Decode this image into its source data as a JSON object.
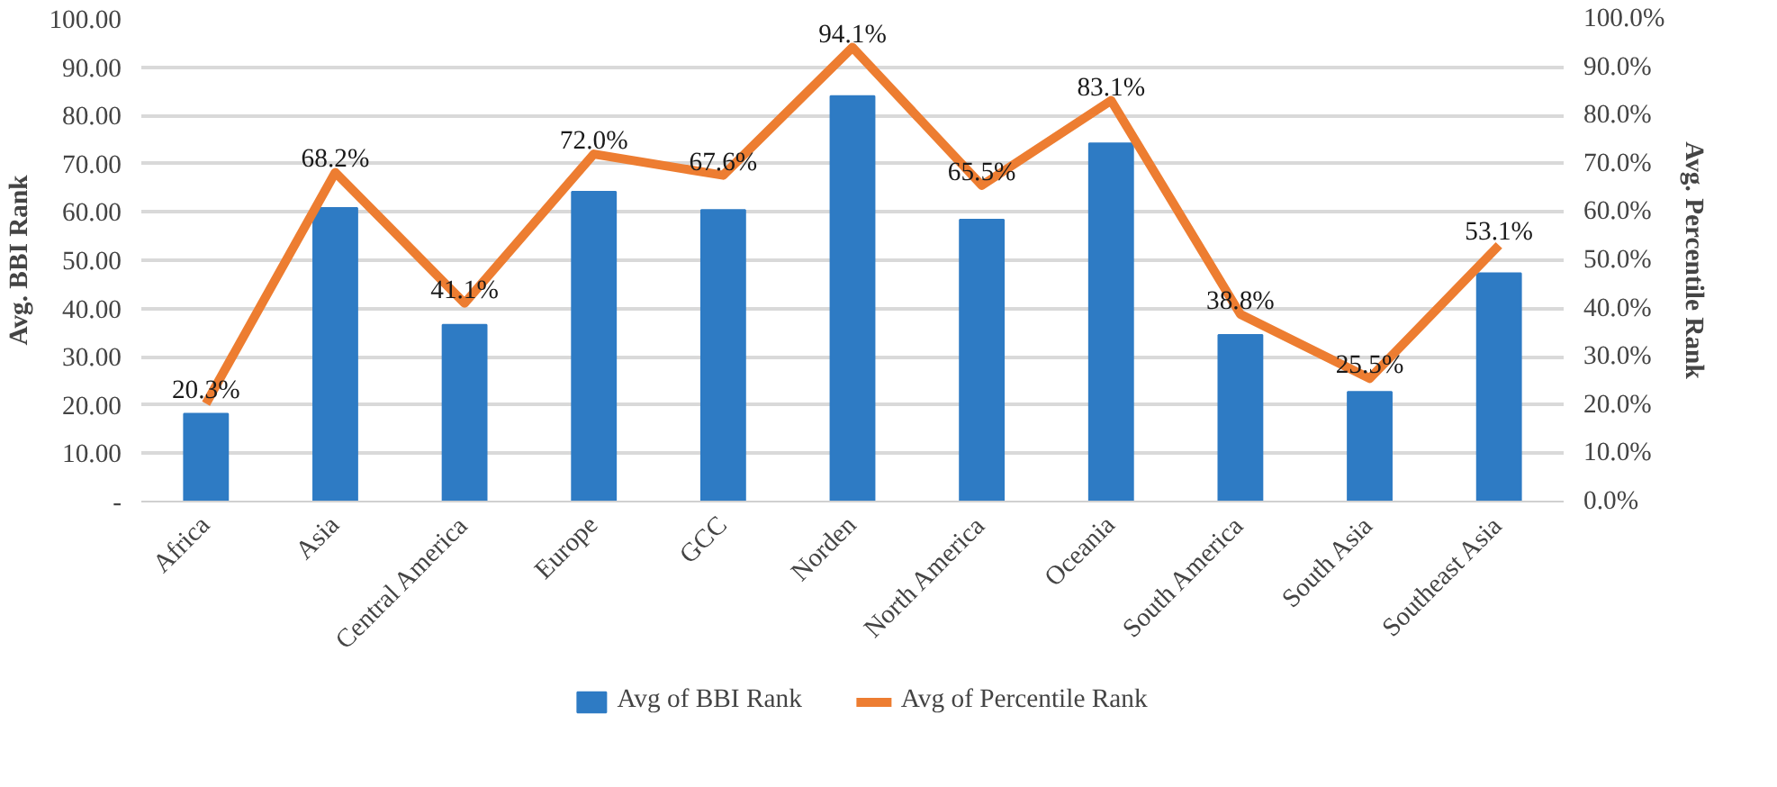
{
  "chart_data": {
    "type": "bar",
    "categories": [
      "Africa",
      "Asia",
      "Central America",
      "Europe",
      "GCC",
      "Norden",
      "North America",
      "Oceania",
      "South America",
      "South Asia",
      "Southeast Asia"
    ],
    "ylabel": "Avg. BBI Rank",
    "y2label": "Avg. Percentile Rank",
    "ylim": [
      0,
      100
    ],
    "yticks": [
      {
        "value": 0,
        "label": "-"
      },
      {
        "value": 10,
        "label": "10.00"
      },
      {
        "value": 20,
        "label": "20.00"
      },
      {
        "value": 30,
        "label": "30.00"
      },
      {
        "value": 40,
        "label": "40.00"
      },
      {
        "value": 50,
        "label": "50.00"
      },
      {
        "value": 60,
        "label": "60.00"
      },
      {
        "value": 70,
        "label": "70.00"
      },
      {
        "value": 80,
        "label": "80.00"
      },
      {
        "value": 90,
        "label": "90.00"
      },
      {
        "value": 100,
        "label": "100.00"
      }
    ],
    "y2lim": [
      0,
      100
    ],
    "y2ticks": [
      {
        "value": 0,
        "label": "0.0%"
      },
      {
        "value": 10,
        "label": "10.0%"
      },
      {
        "value": 20,
        "label": "20.0%"
      },
      {
        "value": 30,
        "label": "30.0%"
      },
      {
        "value": 40,
        "label": "40.0%"
      },
      {
        "value": 50,
        "label": "50.0%"
      },
      {
        "value": 60,
        "label": "60.0%"
      },
      {
        "value": 70,
        "label": "70.0%"
      },
      {
        "value": 80,
        "label": "80.0%"
      },
      {
        "value": 90,
        "label": "90.0%"
      },
      {
        "value": 100,
        "label": "100.0%"
      }
    ],
    "series": [
      {
        "name": "Avg of BBI Rank",
        "color": "#2e7bc4",
        "values": [
          18.2,
          60.8,
          36.6,
          64.2,
          60.4,
          84.0,
          58.4,
          74.2,
          34.5,
          22.7,
          47.3
        ]
      },
      {
        "name": "Avg of Percentile Rank",
        "type": "line",
        "axis": "y2",
        "color": "#ed7d31",
        "values": [
          20.3,
          68.2,
          41.1,
          72.0,
          67.6,
          94.1,
          65.5,
          83.1,
          38.8,
          25.5,
          53.1
        ],
        "value_labels": [
          "20.3%",
          "68.2%",
          "41.1%",
          "72.0%",
          "67.6%",
          "94.1%",
          "65.5%",
          "83.1%",
          "38.8%",
          "25.5%",
          "53.1%"
        ]
      }
    ],
    "grid": "y",
    "legend": "bottom"
  }
}
